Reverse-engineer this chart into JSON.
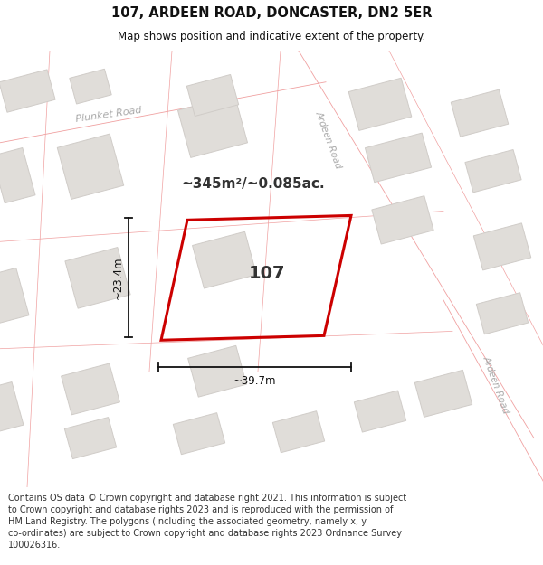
{
  "title": "107, ARDEEN ROAD, DONCASTER, DN2 5ER",
  "subtitle": "Map shows position and indicative extent of the property.",
  "area_text": "~345m²/~0.085ac.",
  "house_number": "107",
  "dim_width": "~39.7m",
  "dim_height": "~23.4m",
  "footer": "Contains OS data © Crown copyright and database right 2021. This information is subject to Crown copyright and database rights 2023 and is reproduced with the permission of HM Land Registry. The polygons (including the associated geometry, namely x, y co-ordinates) are subject to Crown copyright and database rights 2023 Ordnance Survey 100026316.",
  "map_bg": "#f5f2ef",
  "road_fill": "#ffffff",
  "road_line": "#f0a0a0",
  "bldg_fill": "#e0ddd9",
  "bldg_edge": "#d0ccc8",
  "plot_color": "#cc0000",
  "dim_color": "#111111",
  "text_dark": "#333333",
  "text_road": "#aaaaaa",
  "title_color": "#111111",
  "white": "#ffffff"
}
